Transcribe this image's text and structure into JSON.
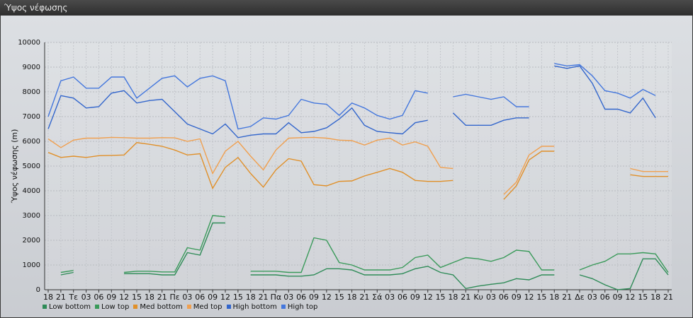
{
  "window": {
    "title": "Ύψος νέφωσης"
  },
  "chart_data": {
    "type": "line",
    "title": "",
    "ylabel": "Ύψος νέφωσης (m)",
    "xlabel": "",
    "ylim": [
      0,
      10000
    ],
    "yticks": [
      0,
      1000,
      2000,
      3000,
      4000,
      5000,
      6000,
      7000,
      8000,
      9000,
      10000
    ],
    "grid": true,
    "legend_position": "bottom-left",
    "categories": [
      "18",
      "21",
      "Τε",
      "03",
      "06",
      "09",
      "12",
      "15",
      "18",
      "21",
      "Πε",
      "03",
      "06",
      "09",
      "12",
      "15",
      "18",
      "21",
      "Πα",
      "03",
      "06",
      "09",
      "12",
      "15",
      "18",
      "21",
      "Σά",
      "03",
      "06",
      "09",
      "12",
      "15",
      "18",
      "21",
      "Κυ",
      "03",
      "06",
      "09",
      "12",
      "15",
      "18",
      "21",
      "Δε",
      "03",
      "06",
      "09",
      "12",
      "15",
      "18",
      "21"
    ],
    "series": [
      {
        "name": "Low bottom",
        "color": "#2e8b57",
        "values": [
          null,
          600,
          700,
          null,
          null,
          null,
          650,
          650,
          650,
          600,
          600,
          1500,
          1400,
          2700,
          2700,
          null,
          600,
          600,
          600,
          550,
          550,
          600,
          850,
          850,
          800,
          600,
          600,
          600,
          650,
          850,
          950,
          700,
          600,
          50,
          150,
          220,
          280,
          450,
          400,
          600,
          600,
          null,
          600,
          450,
          200,
          0,
          50,
          1250,
          1250,
          600
        ]
      },
      {
        "name": "Low top",
        "color": "#3a9a5a",
        "values": [
          null,
          700,
          780,
          null,
          null,
          null,
          700,
          750,
          750,
          720,
          720,
          1700,
          1600,
          3000,
          2950,
          null,
          750,
          750,
          750,
          700,
          700,
          2100,
          2000,
          1100,
          1000,
          800,
          800,
          800,
          900,
          1300,
          1400,
          900,
          1100,
          1300,
          1250,
          1150,
          1300,
          1600,
          1550,
          800,
          800,
          null,
          800,
          1000,
          1150,
          1450,
          1450,
          1500,
          1450,
          700
        ]
      },
      {
        "name": "Med bottom",
        "color": "#e0902a",
        "values": [
          5550,
          5350,
          5400,
          5350,
          5420,
          5430,
          5450,
          5950,
          5880,
          5800,
          5650,
          5450,
          5500,
          4100,
          4950,
          5350,
          4700,
          4150,
          4850,
          5300,
          5200,
          4250,
          4200,
          4380,
          4400,
          4600,
          4750,
          4900,
          4750,
          4420,
          4380,
          4380,
          4420,
          null,
          null,
          null,
          3650,
          4200,
          5250,
          5600,
          5600,
          null,
          null,
          null,
          null,
          null,
          4650,
          4580,
          4580,
          4580
        ]
      },
      {
        "name": "Med top",
        "color": "#f0a050",
        "values": [
          6100,
          5750,
          6050,
          6130,
          6130,
          6160,
          6150,
          6130,
          6130,
          6150,
          6140,
          6000,
          6100,
          4700,
          5600,
          6000,
          5400,
          4850,
          5650,
          6130,
          6150,
          6160,
          6130,
          6050,
          6030,
          5850,
          6050,
          6130,
          5850,
          5980,
          5800,
          4950,
          4900,
          null,
          null,
          null,
          3850,
          4350,
          5450,
          5800,
          5800,
          null,
          null,
          null,
          null,
          null,
          4900,
          4780,
          4780,
          4780
        ]
      },
      {
        "name": "High bottom",
        "color": "#3366cc",
        "values": [
          6500,
          7850,
          7750,
          7350,
          7400,
          7950,
          8050,
          7550,
          7650,
          7700,
          7200,
          6700,
          6500,
          6300,
          6700,
          6150,
          6250,
          6300,
          6300,
          6750,
          6350,
          6400,
          6550,
          6900,
          7350,
          6650,
          6400,
          6350,
          6300,
          6750,
          6850,
          null,
          7150,
          6650,
          6650,
          6650,
          6850,
          6950,
          6950,
          null,
          9050,
          8950,
          9050,
          8350,
          7300,
          7300,
          7150,
          7750,
          6950,
          null
        ]
      },
      {
        "name": "High top",
        "color": "#4477dd",
        "values": [
          7000,
          8450,
          8600,
          8150,
          8150,
          8600,
          8600,
          7750,
          8150,
          8550,
          8650,
          8200,
          8550,
          8650,
          8450,
          6500,
          6600,
          6950,
          6900,
          7050,
          7700,
          7550,
          7500,
          7050,
          7550,
          7350,
          7050,
          6900,
          7050,
          8050,
          7950,
          null,
          7800,
          7900,
          7800,
          7700,
          7800,
          7400,
          7400,
          null,
          9150,
          9050,
          9100,
          8650,
          8050,
          7950,
          7750,
          8100,
          7850,
          null
        ]
      }
    ]
  }
}
